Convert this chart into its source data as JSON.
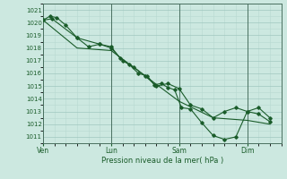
{
  "bg_color": "#cce8e0",
  "grid_color_minor": "#b8d8d0",
  "grid_color_major": "#a0c8c0",
  "line_color": "#1a5c2a",
  "xlabel": "Pression niveau de la mer( hPa )",
  "ylim": [
    1010.5,
    1021.5
  ],
  "yticks": [
    1011,
    1012,
    1013,
    1014,
    1015,
    1016,
    1017,
    1018,
    1019,
    1020,
    1021
  ],
  "xtick_labels": [
    "Ven",
    "Lun",
    "Sam",
    "Dim"
  ],
  "xtick_positions": [
    0,
    3.0,
    6.0,
    9.0
  ],
  "vline_positions": [
    0,
    3.0,
    6.0,
    9.0
  ],
  "xlim": [
    0,
    10.5
  ],
  "series1_x": [
    0.0,
    0.3,
    0.6,
    1.0,
    1.5,
    2.0,
    2.5,
    3.0,
    3.4,
    3.8,
    4.2,
    4.6,
    4.9,
    5.2,
    5.5,
    5.8,
    6.1,
    6.5,
    7.0,
    7.5,
    8.0,
    8.5,
    9.0,
    9.5,
    10.0
  ],
  "series1_y": [
    1020.2,
    1020.5,
    1020.4,
    1019.8,
    1018.8,
    1018.1,
    1018.3,
    1018.1,
    1017.2,
    1016.7,
    1016.0,
    1015.8,
    1015.1,
    1015.2,
    1014.9,
    1014.7,
    1013.3,
    1013.2,
    1012.1,
    1011.1,
    1010.8,
    1011.0,
    1013.0,
    1013.3,
    1012.5
  ],
  "series2_x": [
    0.0,
    0.4,
    1.5,
    2.5,
    3.0,
    3.5,
    4.0,
    4.5,
    5.0,
    5.5,
    6.0,
    6.5,
    7.0,
    7.5,
    8.0,
    8.5,
    9.0,
    9.5,
    10.0
  ],
  "series2_y": [
    1020.2,
    1020.3,
    1018.8,
    1018.3,
    1018.0,
    1017.0,
    1016.5,
    1015.8,
    1015.0,
    1015.2,
    1014.8,
    1013.5,
    1013.2,
    1012.5,
    1013.0,
    1013.3,
    1013.0,
    1012.8,
    1012.2
  ],
  "series3_x": [
    0.0,
    1.5,
    3.0,
    4.5,
    6.0,
    7.5,
    9.0,
    10.0
  ],
  "series3_y": [
    1020.2,
    1018.0,
    1017.8,
    1015.8,
    1013.8,
    1012.5,
    1012.3,
    1012.0
  ]
}
